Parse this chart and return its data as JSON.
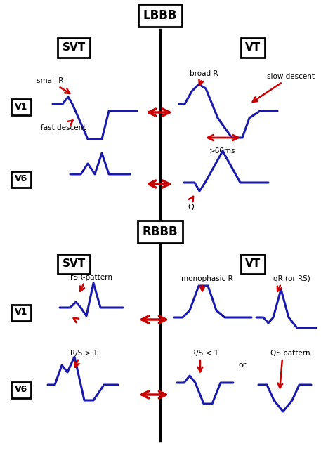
{
  "bg_color": "#ffffff",
  "line_color": "#1a1aaa",
  "line_width": 2.2,
  "arrow_color": "#cc0000",
  "text_color": "#000000",
  "lbbb_label": "LBBB",
  "rbbb_label": "RBBB",
  "svt_label": "SVT",
  "vt_label": "VT",
  "v1_label": "V1",
  "v6_label": "V6"
}
